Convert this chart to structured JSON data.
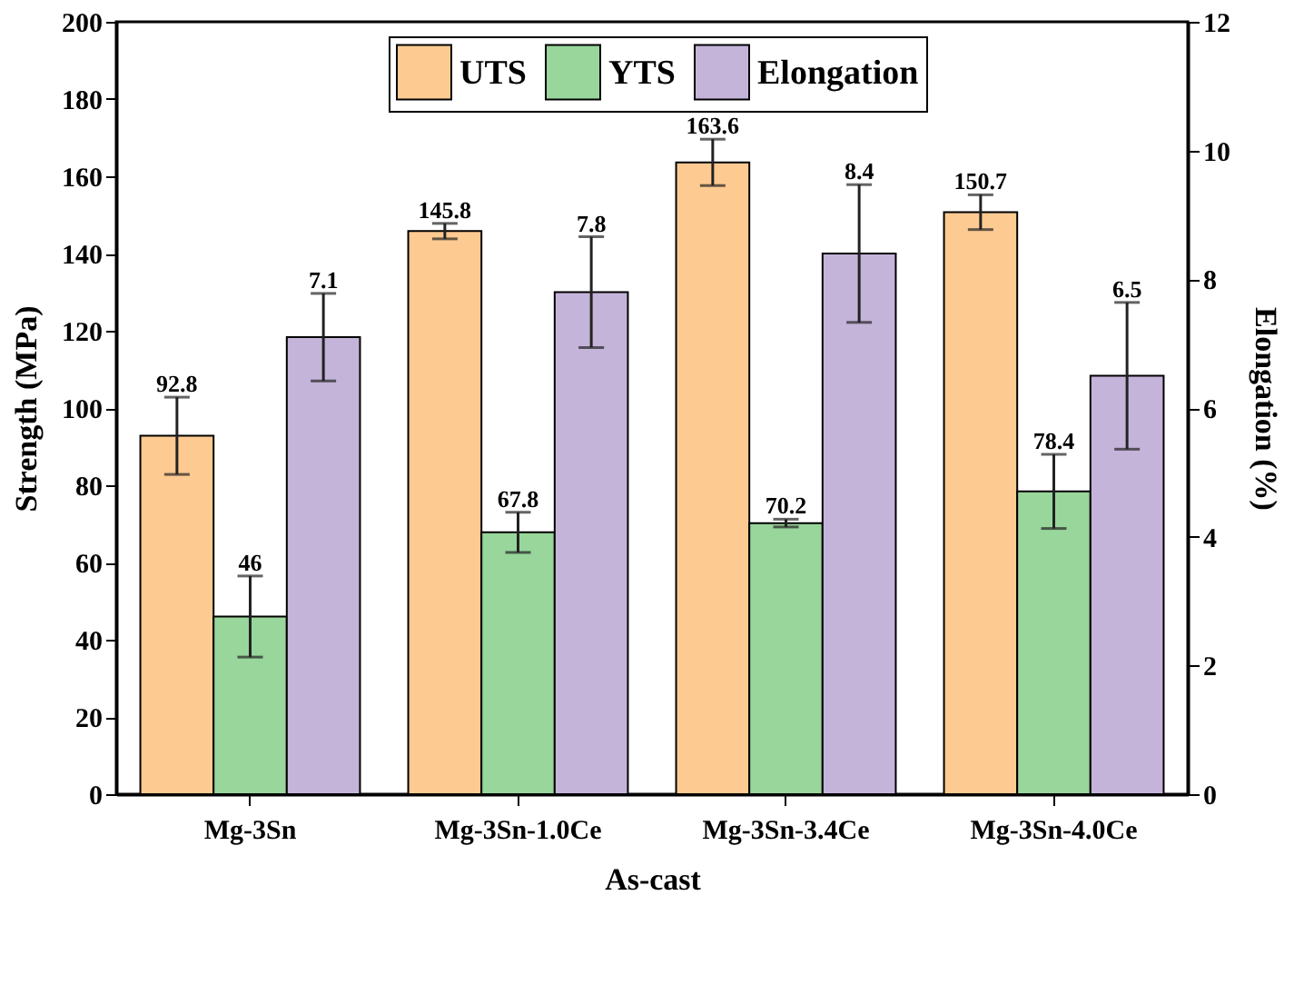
{
  "chart_data": {
    "type": "bar",
    "xlabel": "As-cast",
    "ylabel": "Strength (MPa)",
    "y2label": "Elongation (%)",
    "categories": [
      "Mg-3Sn",
      "Mg-3Sn-1.0Ce",
      "Mg-3Sn-3.4Ce",
      "Mg-3Sn-4.0Ce"
    ],
    "series": [
      {
        "name": "UTS",
        "color": "#fdca92",
        "values": [
          92.8,
          145.8,
          163.6,
          150.7
        ],
        "errors": [
          10,
          2,
          6,
          4.5
        ]
      },
      {
        "name": "YTS",
        "color": "#98d69c",
        "values": [
          46,
          67.8,
          70.2,
          78.4
        ],
        "errors": [
          10.5,
          5.2,
          1,
          9.6
        ]
      },
      {
        "name": "Elongation",
        "color": "#c4b4d9",
        "axis": "y2",
        "values": [
          7.1,
          7.8,
          8.4,
          6.5
        ],
        "errors": [
          0.68,
          0.86,
          1.07,
          1.14
        ]
      }
    ],
    "ylim": [
      0,
      200
    ],
    "yticks": [
      0,
      20,
      40,
      60,
      80,
      100,
      120,
      140,
      160,
      180,
      200
    ],
    "y2lim": [
      0,
      12
    ],
    "y2ticks": [
      0,
      2,
      4,
      6,
      8,
      10,
      12
    ],
    "data_labels": true,
    "legend": "top",
    "grid": false
  }
}
